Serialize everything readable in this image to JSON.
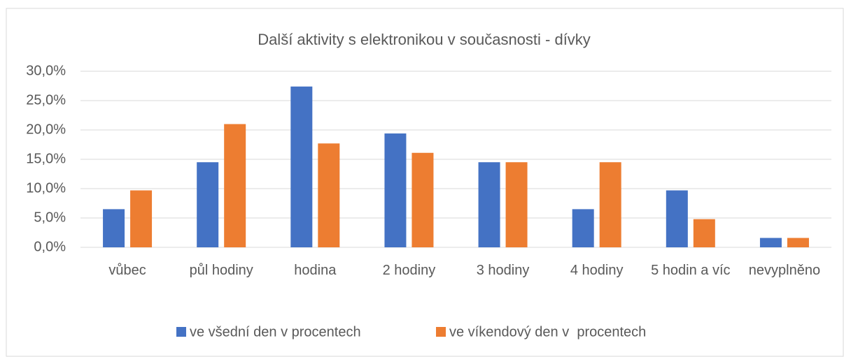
{
  "chart_data": {
    "type": "bar",
    "title": "Další aktivity s elektronikou v současnosti - dívky",
    "categories": [
      "vůbec",
      "půl hodiny",
      "hodina",
      "2 hodiny",
      "3 hodiny",
      "4 hodiny",
      "5 hodin a víc",
      "nevyplněno"
    ],
    "series": [
      {
        "name": "ve všední den v procentech",
        "color": "#4472c4",
        "values": [
          6.5,
          14.5,
          27.4,
          19.4,
          14.5,
          6.5,
          9.7,
          1.6
        ]
      },
      {
        "name": "ve víkendový den v  procentech",
        "color": "#ed7d31",
        "values": [
          9.7,
          21.0,
          17.7,
          16.1,
          14.5,
          14.5,
          4.8,
          1.6
        ]
      }
    ],
    "ylim": [
      0,
      30
    ],
    "yticks": [
      {
        "value": 0,
        "label": "0,0%"
      },
      {
        "value": 5,
        "label": "5,0%"
      },
      {
        "value": 10,
        "label": "10,0%"
      },
      {
        "value": 15,
        "label": "15,0%"
      },
      {
        "value": 20,
        "label": "20,0%"
      },
      {
        "value": 25,
        "label": "25,0%"
      },
      {
        "value": 30,
        "label": "30,0%"
      }
    ],
    "grid": true,
    "legend": "bottom"
  }
}
